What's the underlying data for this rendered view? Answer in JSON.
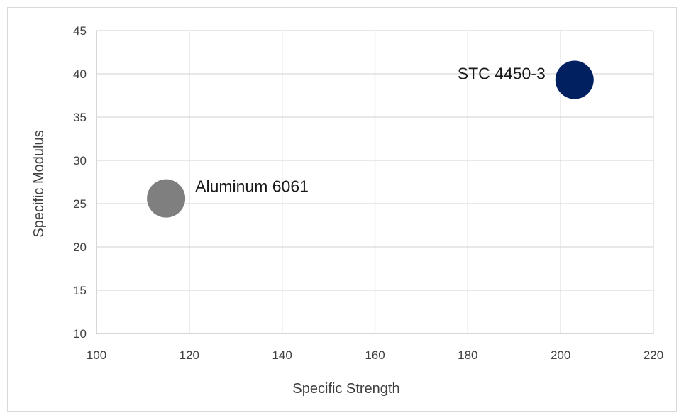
{
  "chart_data": {
    "type": "scatter",
    "title": "",
    "xlabel": "Specific Strength",
    "ylabel": "Specific Modulus",
    "xlim": [
      100,
      220
    ],
    "ylim": [
      10,
      45
    ],
    "x_ticks": [
      100,
      120,
      140,
      160,
      180,
      200,
      220
    ],
    "y_ticks": [
      10,
      15,
      20,
      25,
      30,
      35,
      40,
      45
    ],
    "grid": true,
    "legend": "none",
    "points": [
      {
        "label": "Aluminum 6061",
        "x": 115,
        "y": 25.6,
        "color": "#7f7f7f",
        "label_side": "right"
      },
      {
        "label": "STC 4450-3",
        "x": 203,
        "y": 39.3,
        "color": "#002060",
        "label_side": "left"
      }
    ]
  }
}
